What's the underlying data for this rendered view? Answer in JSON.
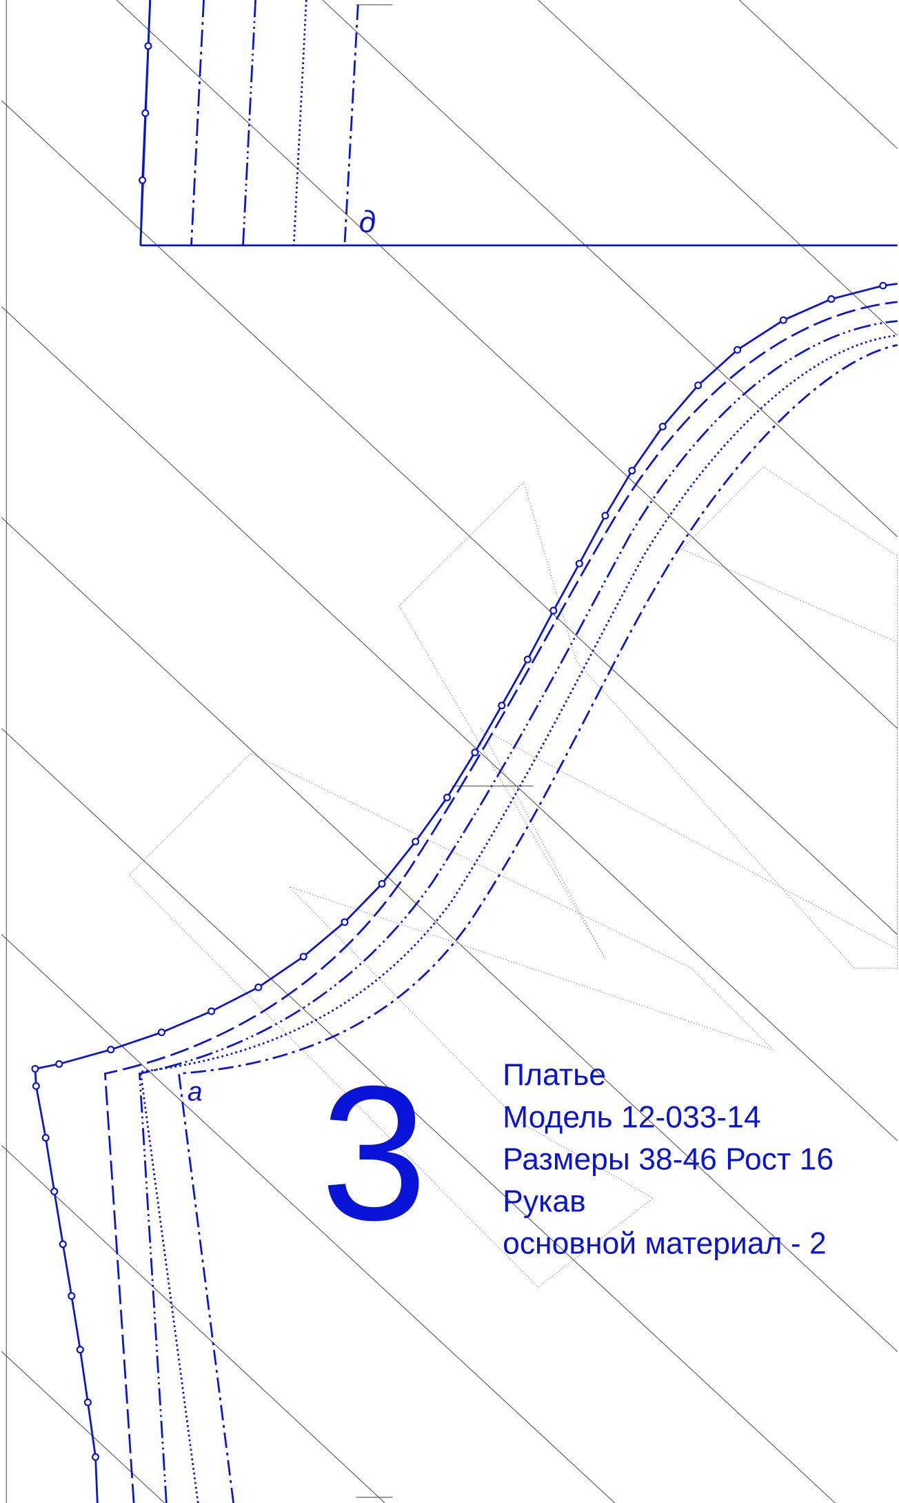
{
  "labels": {
    "point_d": "д",
    "point_a": "а"
  },
  "piece": {
    "number": "3",
    "lines": [
      "Платье",
      "Модель 12-033-14",
      "Размеры 38-46 Рост 16",
      "Рукав",
      "основной материал - 2"
    ]
  }
}
